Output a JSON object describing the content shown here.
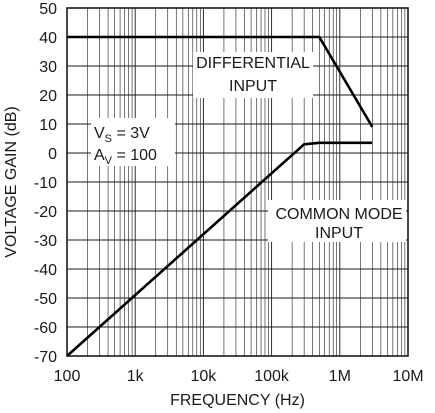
{
  "chart_data": {
    "type": "line",
    "title": "",
    "xlabel": "FREQUENCY (Hz)",
    "ylabel": "VOLTAGE GAIN (dB)",
    "xscale": "log",
    "xlim": [
      100,
      10000000
    ],
    "ylim": [
      -70,
      50
    ],
    "grid": true,
    "x_ticks": [
      {
        "value": 100,
        "label": "100"
      },
      {
        "value": 1000,
        "label": "1k"
      },
      {
        "value": 10000,
        "label": "10k"
      },
      {
        "value": 100000,
        "label": "100k"
      },
      {
        "value": 1000000,
        "label": "1M"
      },
      {
        "value": 10000000,
        "label": "10M"
      }
    ],
    "y_ticks": [
      50,
      40,
      30,
      20,
      10,
      0,
      -10,
      -20,
      -30,
      -40,
      -50,
      -60,
      -70
    ],
    "series": [
      {
        "points": [
          [
            100,
            40
          ],
          [
            500000,
            40
          ],
          [
            3000000,
            9
          ]
        ]
      },
      {
        "points": [
          [
            100,
            -70
          ],
          [
            300000,
            3
          ],
          [
            500000,
            3.5
          ],
          [
            3000000,
            3.5
          ]
        ]
      }
    ],
    "annotations": [
      {
        "lines": [
          "DIFFERENTIAL",
          "INPUT"
        ]
      },
      {
        "lines": [
          "COMMON MODE",
          "INPUT"
        ]
      },
      {
        "lines": [
          "VS = 3V",
          "AV = 100"
        ]
      }
    ]
  },
  "colors": {
    "line": "#000000",
    "grid": "#1a1a1a",
    "background": "#ffffff"
  }
}
